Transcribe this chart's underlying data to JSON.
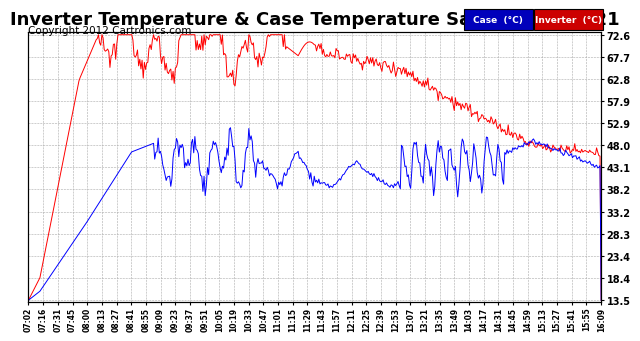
{
  "title": "Inverter Temperature & Case Temperature Sat Nov 24 16:21",
  "copyright": "Copyright 2012 Cartronics.com",
  "y_ticks": [
    13.5,
    18.4,
    23.4,
    28.3,
    33.2,
    38.2,
    43.1,
    48.0,
    52.9,
    57.9,
    62.8,
    67.7,
    72.6
  ],
  "x_labels": [
    "07:02",
    "07:16",
    "07:31",
    "07:45",
    "08:00",
    "08:13",
    "08:27",
    "08:41",
    "08:55",
    "09:09",
    "09:23",
    "09:37",
    "09:51",
    "10:05",
    "10:19",
    "10:33",
    "10:47",
    "11:01",
    "11:15",
    "11:29",
    "11:43",
    "11:57",
    "12:11",
    "12:25",
    "12:39",
    "12:53",
    "13:07",
    "13:21",
    "13:35",
    "13:49",
    "14:03",
    "14:17",
    "14:31",
    "14:45",
    "14:59",
    "15:13",
    "15:27",
    "15:41",
    "15:55",
    "16:09"
  ],
  "legend": [
    {
      "label": "Case  (°C)",
      "bg": "#0000bb",
      "text_color": "#ffffff"
    },
    {
      "label": "Inverter  (°C)",
      "bg": "#cc0000",
      "text_color": "#ffffff"
    }
  ],
  "background_color": "#ffffff",
  "plot_bg_color": "#ffffff",
  "grid_color": "#aaaaaa",
  "title_fontsize": 13,
  "copyright_fontsize": 7.5
}
